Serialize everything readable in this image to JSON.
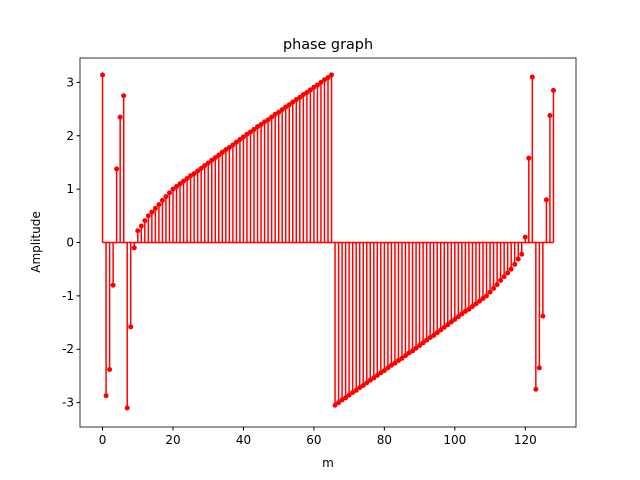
{
  "chart_data": {
    "type": "stem",
    "title": "phase graph",
    "xlabel": "m",
    "ylabel": "Amplitude",
    "color": "#ff0000",
    "x": [
      0,
      1,
      2,
      3,
      4,
      5,
      6,
      7,
      8,
      9,
      10,
      11,
      12,
      13,
      14,
      15,
      16,
      17,
      18,
      19,
      20,
      21,
      22,
      23,
      24,
      25,
      26,
      27,
      28,
      29,
      30,
      31,
      32,
      33,
      34,
      35,
      36,
      37,
      38,
      39,
      40,
      41,
      42,
      43,
      44,
      45,
      46,
      47,
      48,
      49,
      50,
      51,
      52,
      53,
      54,
      55,
      56,
      57,
      58,
      59,
      60,
      61,
      62,
      63,
      64,
      65,
      66,
      67,
      68,
      69,
      70,
      71,
      72,
      73,
      74,
      75,
      76,
      77,
      78,
      79,
      80,
      81,
      82,
      83,
      84,
      85,
      86,
      87,
      88,
      89,
      90,
      91,
      92,
      93,
      94,
      95,
      96,
      97,
      98,
      99,
      100,
      101,
      102,
      103,
      104,
      105,
      106,
      107,
      108,
      109,
      110,
      111,
      112,
      113,
      114,
      115,
      116,
      117,
      118,
      119,
      120,
      121,
      122,
      123,
      124,
      125,
      126,
      127,
      128
    ],
    "values": [
      3.14,
      -2.87,
      -2.38,
      -0.8,
      1.38,
      2.35,
      2.75,
      -3.1,
      -1.58,
      -0.1,
      0.22,
      0.31,
      0.41,
      0.5,
      0.57,
      0.64,
      0.71,
      0.79,
      0.86,
      0.93,
      1.0,
      1.05,
      1.1,
      1.15,
      1.2,
      1.25,
      1.29,
      1.34,
      1.39,
      1.44,
      1.49,
      1.54,
      1.59,
      1.64,
      1.69,
      1.74,
      1.78,
      1.83,
      1.88,
      1.93,
      1.98,
      2.03,
      2.07,
      2.12,
      2.17,
      2.21,
      2.26,
      2.3,
      2.35,
      2.4,
      2.44,
      2.49,
      2.54,
      2.58,
      2.63,
      2.68,
      2.72,
      2.77,
      2.81,
      2.86,
      2.91,
      2.95,
      3.0,
      3.05,
      3.09,
      3.14,
      -3.05,
      -3.0,
      -2.95,
      -2.91,
      -2.86,
      -2.81,
      -2.77,
      -2.72,
      -2.68,
      -2.63,
      -2.58,
      -2.54,
      -2.49,
      -2.44,
      -2.4,
      -2.35,
      -2.3,
      -2.26,
      -2.21,
      -2.17,
      -2.12,
      -2.07,
      -2.03,
      -1.98,
      -1.93,
      -1.88,
      -1.83,
      -1.78,
      -1.74,
      -1.69,
      -1.64,
      -1.59,
      -1.54,
      -1.49,
      -1.44,
      -1.39,
      -1.34,
      -1.29,
      -1.25,
      -1.2,
      -1.15,
      -1.1,
      -1.05,
      -1.0,
      -0.93,
      -0.86,
      -0.79,
      -0.71,
      -0.64,
      -0.57,
      -0.5,
      -0.41,
      -0.31,
      -0.22,
      0.1,
      1.58,
      3.1,
      -2.75,
      -2.35,
      -1.38,
      0.8,
      2.38,
      2.85
    ],
    "xlim": [
      -6.4,
      134.4
    ],
    "xticks": [
      0,
      20,
      40,
      60,
      80,
      100,
      120
    ],
    "ylim": [
      -3.457,
      3.457
    ],
    "yticks": [
      -3,
      -2,
      -1,
      0,
      1,
      2,
      3
    ]
  }
}
